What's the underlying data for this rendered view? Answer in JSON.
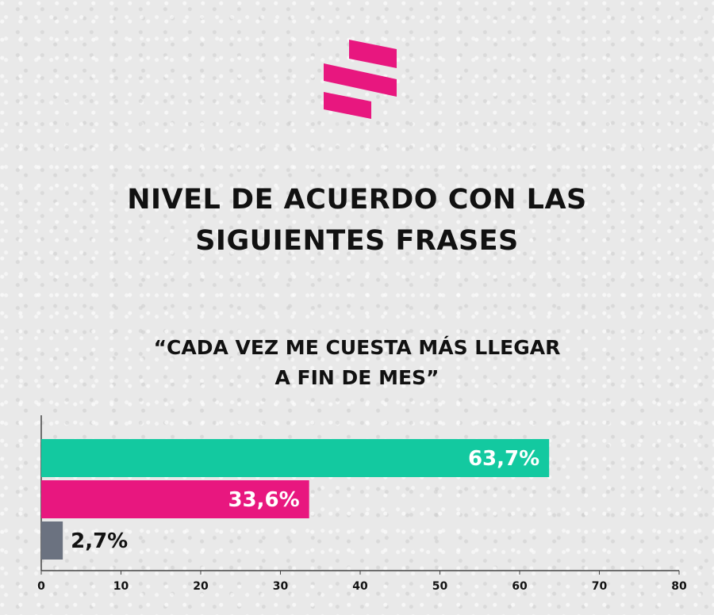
{
  "header": {
    "title_line1": "NIVEL DE ACUERDO CON LAS",
    "title_line2": "SIGUIENTES FRASES",
    "quote_line1": "“CADA VEZ ME CUESTA MÁS LLEGAR",
    "quote_line2": "A FIN DE MES”"
  },
  "colors": {
    "brand_pink": "#e8177f",
    "teal": "#13c9a0",
    "gray": "#6b7280"
  },
  "chart_data": {
    "type": "bar",
    "orientation": "horizontal",
    "categories": [
      "",
      "",
      ""
    ],
    "values": [
      63.7,
      33.6,
      2.7
    ],
    "value_labels": [
      "63,7%",
      "33,6%",
      "2,7%"
    ],
    "bar_colors": [
      "#13c9a0",
      "#e8177f",
      "#6b7280"
    ],
    "xlim": [
      0,
      80
    ],
    "xticks": [
      0,
      10,
      20,
      30,
      40,
      50,
      60,
      70,
      80
    ],
    "grid": false,
    "legend": "none"
  }
}
